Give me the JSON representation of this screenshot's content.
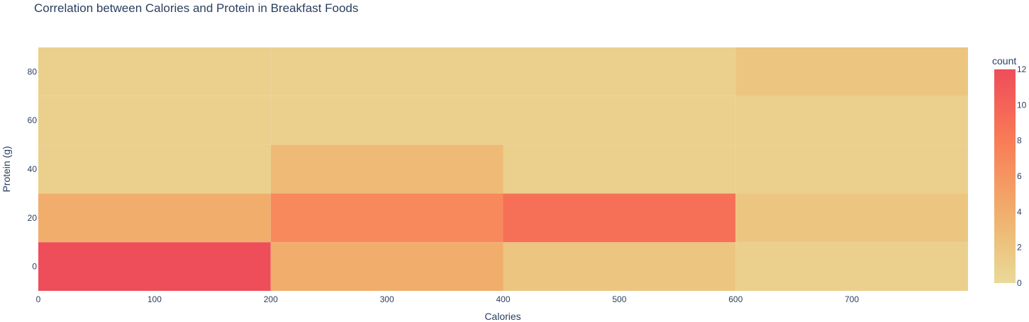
{
  "chart_data": {
    "type": "heatmap",
    "title": "Correlation between Calories and Protein in Breakfast Foods",
    "xlabel": "Calories",
    "ylabel": "Protein (g)",
    "x_bins": [
      [
        0,
        200
      ],
      [
        200,
        400
      ],
      [
        400,
        600
      ],
      [
        600,
        800
      ]
    ],
    "y_bins": [
      [
        -10,
        10
      ],
      [
        10,
        30
      ],
      [
        30,
        50
      ],
      [
        50,
        70
      ],
      [
        70,
        90
      ]
    ],
    "xlim": [
      0,
      800
    ],
    "ylim": [
      -10,
      90
    ],
    "x_ticks": [
      0,
      100,
      200,
      300,
      400,
      500,
      600,
      700
    ],
    "y_ticks": [
      0,
      20,
      40,
      60,
      80
    ],
    "z": [
      [
        12,
        4,
        2,
        1
      ],
      [
        4,
        7,
        9,
        2
      ],
      [
        1,
        3,
        1,
        1
      ],
      [
        1,
        1,
        1,
        1
      ],
      [
        1,
        1,
        1,
        2
      ]
    ],
    "colorbar": {
      "title": "count",
      "range": [
        0,
        12
      ],
      "ticks": [
        0,
        2,
        4,
        6,
        8,
        10,
        12
      ],
      "colorscale": [
        "#e9d99a",
        "#ecc580",
        "#f1ad6c",
        "#f59561",
        "#f87c57",
        "#f46358",
        "#ee4d5a"
      ]
    }
  }
}
